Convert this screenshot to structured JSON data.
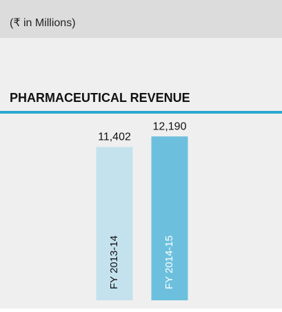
{
  "chart_data": {
    "type": "bar",
    "subtitle": "(₹ in Millions)",
    "title": "PHARMACEUTICAL REVENUE",
    "categories": [
      "FY 2013-14",
      "FY 2014-15"
    ],
    "values": [
      11402,
      12190
    ],
    "value_labels": [
      "11,402",
      "12,190"
    ],
    "colors": [
      "#c4e2ee",
      "#6cc0dd"
    ],
    "ylim": [
      0,
      12400
    ]
  }
}
